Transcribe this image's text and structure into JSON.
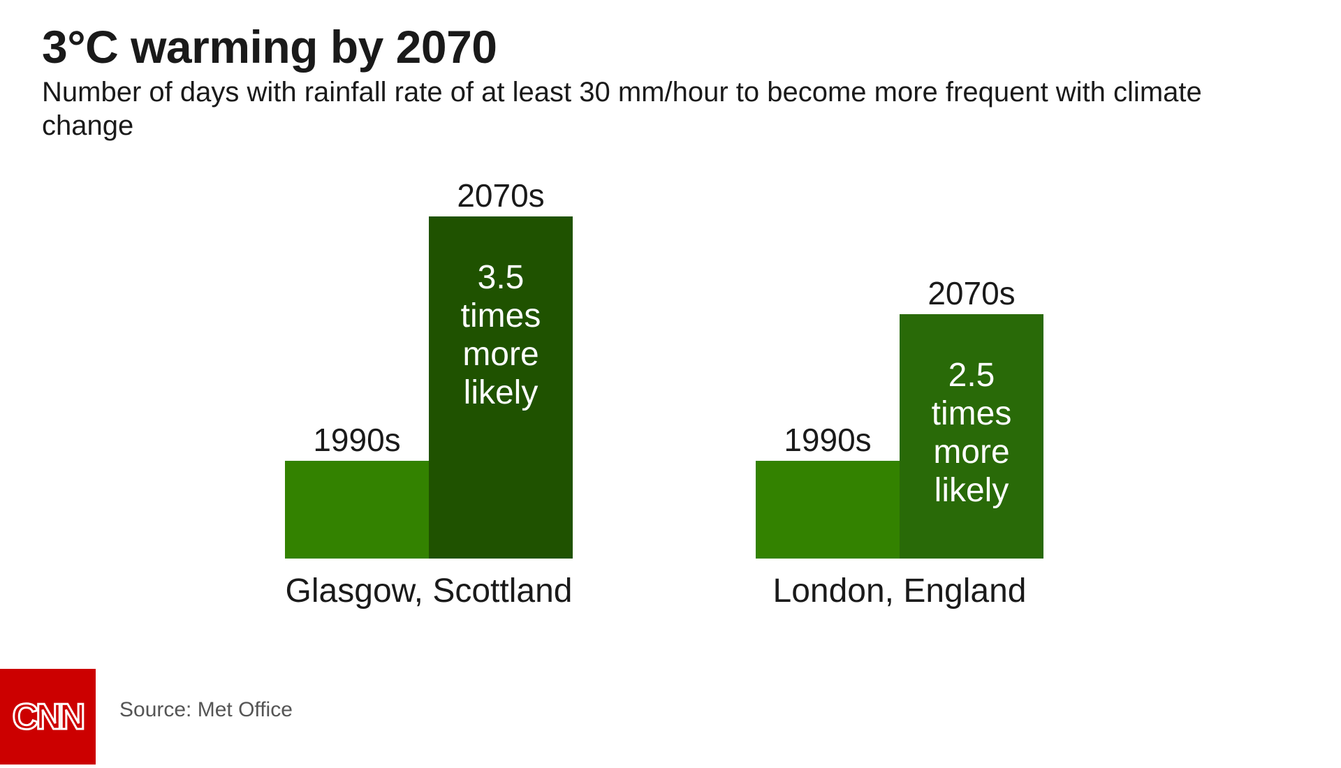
{
  "title": "3°C warming by 2070",
  "subtitle": "Number of days with rainfall rate of at least 30 mm/hour to become more frequent with climate change",
  "source": "Source: Met Office",
  "logo_text": "CNN",
  "colors": {
    "baseline": "#338200",
    "glasgow_2070": "#1f5200",
    "london_2070": "#296a08",
    "logo_bg": "#cc0000",
    "text": "#1a1a1a"
  },
  "chart_data": {
    "type": "bar",
    "title": "3°C warming by 2070",
    "subtitle": "Number of days with rainfall rate of at least 30 mm/hour to become more frequent with climate change",
    "xlabel": "",
    "ylabel": "",
    "grid": false,
    "categories": [
      "Glasgow, Scottland",
      "London, England"
    ],
    "series": [
      {
        "name": "1990s",
        "values": [
          1,
          1
        ]
      },
      {
        "name": "2070s",
        "values": [
          3.5,
          2.5
        ]
      }
    ],
    "annotations": [
      {
        "category": "Glasgow, Scottland",
        "lines": [
          "3.5",
          "times",
          "more",
          "likely"
        ]
      },
      {
        "category": "London, England",
        "lines": [
          "2.5",
          "times",
          "more",
          "likely"
        ]
      }
    ],
    "ylim": [
      0,
      3.5
    ]
  }
}
